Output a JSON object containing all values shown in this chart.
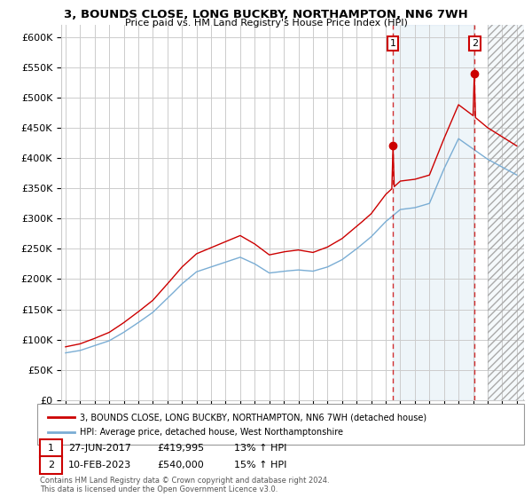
{
  "title": "3, BOUNDS CLOSE, LONG BUCKBY, NORTHAMPTON, NN6 7WH",
  "subtitle": "Price paid vs. HM Land Registry's House Price Index (HPI)",
  "ylim": [
    0,
    620000
  ],
  "yticks": [
    0,
    50000,
    100000,
    150000,
    200000,
    250000,
    300000,
    350000,
    400000,
    450000,
    500000,
    550000,
    600000
  ],
  "ytick_labels": [
    "£0",
    "£50K",
    "£100K",
    "£150K",
    "£200K",
    "£250K",
    "£300K",
    "£350K",
    "£400K",
    "£450K",
    "£500K",
    "£550K",
    "£600K"
  ],
  "sale1_date": "27-JUN-2017",
  "sale1_price": 419995,
  "sale1_year": 2017.49,
  "sale1_label": "1",
  "sale1_pct": "13% ↑ HPI",
  "sale2_date": "10-FEB-2023",
  "sale2_price": 540000,
  "sale2_year": 2023.11,
  "sale2_label": "2",
  "sale2_pct": "15% ↑ HPI",
  "legend_line1": "3, BOUNDS CLOSE, LONG BUCKBY, NORTHAMPTON, NN6 7WH (detached house)",
  "legend_line2": "HPI: Average price, detached house, West Northamptonshire",
  "footer1": "Contains HM Land Registry data © Crown copyright and database right 2024.",
  "footer2": "This data is licensed under the Open Government Licence v3.0.",
  "red_color": "#cc0000",
  "blue_color": "#7aadd4",
  "bg_color": "#ffffff",
  "grid_color": "#cccccc",
  "hatch_start_year": 2024.0,
  "xmin": 1995.0,
  "xmax": 2026.5
}
